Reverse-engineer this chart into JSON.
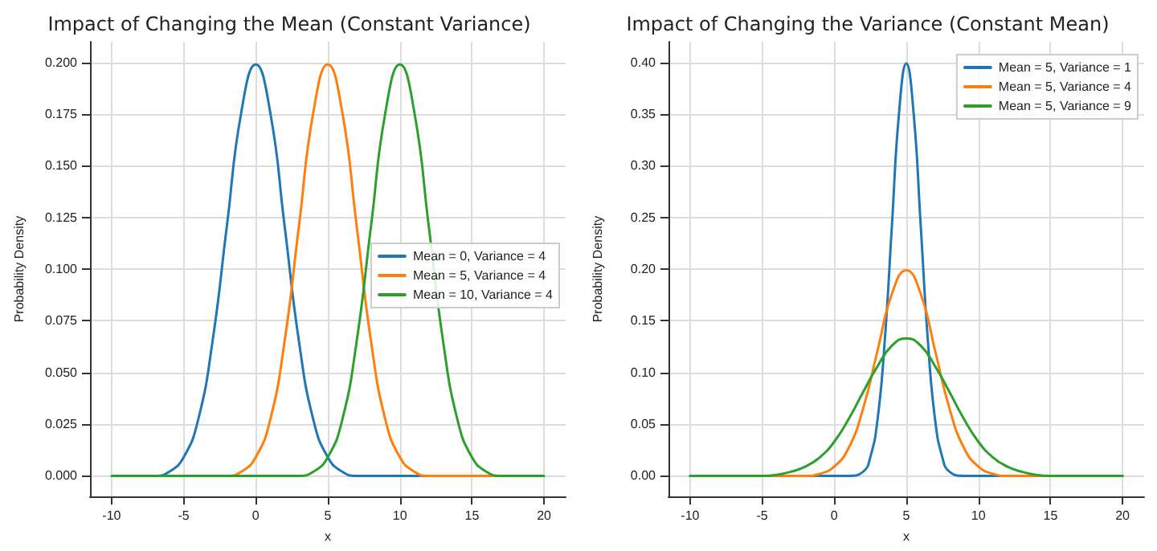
{
  "chart_data": [
    {
      "type": "line",
      "title": "Impact of Changing the Mean (Constant Variance)",
      "xlabel": "x",
      "ylabel": "Probability Density",
      "x": [
        -10,
        -9,
        -8,
        -7,
        -6,
        -5,
        -4,
        -3,
        -2,
        -1,
        0,
        1,
        2,
        3,
        4,
        5,
        6,
        7,
        8,
        9,
        10,
        11,
        12,
        13,
        14,
        15,
        16,
        17,
        18,
        19,
        20
      ],
      "series": [
        {
          "name": "Mean = 0, Variance = 4",
          "color": "#1f77b4",
          "values": [
            null,
            null,
            0,
            0,
            0.002,
            0.009,
            0.027,
            0.065,
            0.121,
            0.176,
            0.199,
            0.176,
            0.121,
            0.065,
            0.027,
            0.009,
            0.002,
            0,
            0,
            0,
            0,
            0,
            0,
            0,
            null,
            null,
            null,
            null,
            null,
            null,
            null
          ]
        },
        {
          "name": "Mean = 5, Variance = 4",
          "color": "#ff7f0e",
          "values": [
            null,
            null,
            null,
            null,
            null,
            null,
            null,
            0,
            0,
            0.002,
            0.009,
            0.027,
            0.065,
            0.121,
            0.176,
            0.199,
            0.176,
            0.121,
            0.065,
            0.027,
            0.009,
            0.002,
            0,
            0,
            0,
            0,
            0,
            0,
            0,
            null,
            null
          ]
        },
        {
          "name": "Mean = 10, Variance = 4",
          "color": "#2ca02c",
          "values": [
            0,
            0,
            0,
            0,
            0,
            0,
            0,
            0,
            0,
            0,
            0,
            0,
            0,
            0,
            0.002,
            0.009,
            0.027,
            0.065,
            0.121,
            0.176,
            0.199,
            0.176,
            0.121,
            0.065,
            0.027,
            0.009,
            0.002,
            0,
            0,
            0,
            0
          ]
        }
      ],
      "xlim": [
        -11.5,
        21.5
      ],
      "xticks": [
        -10,
        -5,
        0,
        5,
        10,
        15,
        20
      ],
      "ylim": [
        -0.01,
        0.21
      ],
      "yticks": [
        {
          "value": 0,
          "label": "0.000"
        },
        {
          "value": 0.025,
          "label": "0.025"
        },
        {
          "value": 0.05,
          "label": "0.050"
        },
        {
          "value": 0.075,
          "label": "0.075"
        },
        {
          "value": 0.1,
          "label": "0.100"
        },
        {
          "value": 0.125,
          "label": "0.125"
        },
        {
          "value": 0.15,
          "label": "0.150"
        },
        {
          "value": 0.175,
          "label": "0.175"
        },
        {
          "value": 0.2,
          "label": "0.200"
        }
      ],
      "grid": true,
      "legend": "right",
      "marker": "none",
      "line_style": "solid"
    },
    {
      "type": "line",
      "title": "Impact of Changing the Variance (Constant Mean)",
      "xlabel": "x",
      "ylabel": "Probability Density",
      "x": [
        -10,
        -9,
        -8,
        -7,
        -6,
        -5,
        -4,
        -3,
        -2,
        -1,
        0,
        1,
        2,
        3,
        4,
        5,
        6,
        7,
        8,
        9,
        10,
        11,
        12,
        13,
        14,
        15,
        16,
        17,
        18,
        19,
        20
      ],
      "series": [
        {
          "name": "Mean = 5, Variance = 1",
          "color": "#1f77b4",
          "x": [
            -10,
            1,
            2,
            2.5,
            3,
            3.5,
            4,
            4.5,
            5,
            5.5,
            6,
            6.5,
            7,
            7.5,
            8,
            9,
            20
          ],
          "values": [
            0,
            0,
            0.004,
            0.018,
            0.054,
            0.13,
            0.242,
            0.352,
            0.399,
            0.352,
            0.242,
            0.13,
            0.054,
            0.018,
            0.004,
            0,
            0
          ]
        },
        {
          "name": "Mean = 5, Variance = 4",
          "color": "#ff7f0e",
          "values": [
            null,
            null,
            null,
            null,
            0,
            0,
            0,
            0,
            0,
            0.002,
            0.009,
            0.027,
            0.065,
            0.121,
            0.176,
            0.199,
            0.176,
            0.121,
            0.065,
            0.027,
            0.009,
            0.002,
            0,
            0,
            0,
            0,
            null,
            null,
            null,
            null,
            null
          ]
        },
        {
          "name": "Mean = 5, Variance = 9",
          "color": "#2ca02c",
          "values": [
            0,
            0,
            0,
            0,
            0,
            0,
            0.001,
            0.004,
            0.009,
            0.018,
            0.033,
            0.055,
            0.081,
            0.106,
            0.126,
            0.133,
            0.126,
            0.106,
            0.081,
            0.055,
            0.033,
            0.018,
            0.009,
            0.004,
            0.001,
            0,
            0,
            0,
            0,
            0,
            0
          ]
        }
      ],
      "xlim": [
        -11.5,
        21.5
      ],
      "xticks": [
        -10,
        -5,
        0,
        5,
        10,
        15,
        20
      ],
      "ylim": [
        -0.02,
        0.42
      ],
      "yticks": [
        {
          "value": 0,
          "label": "0.00"
        },
        {
          "value": 0.05,
          "label": "0.05"
        },
        {
          "value": 0.1,
          "label": "0.10"
        },
        {
          "value": 0.15,
          "label": "0.15"
        },
        {
          "value": 0.2,
          "label": "0.20"
        },
        {
          "value": 0.25,
          "label": "0.25"
        },
        {
          "value": 0.3,
          "label": "0.30"
        },
        {
          "value": 0.35,
          "label": "0.35"
        },
        {
          "value": 0.4,
          "label": "0.40"
        }
      ],
      "grid": true,
      "legend": "top right",
      "marker": "none",
      "line_style": "solid"
    }
  ]
}
